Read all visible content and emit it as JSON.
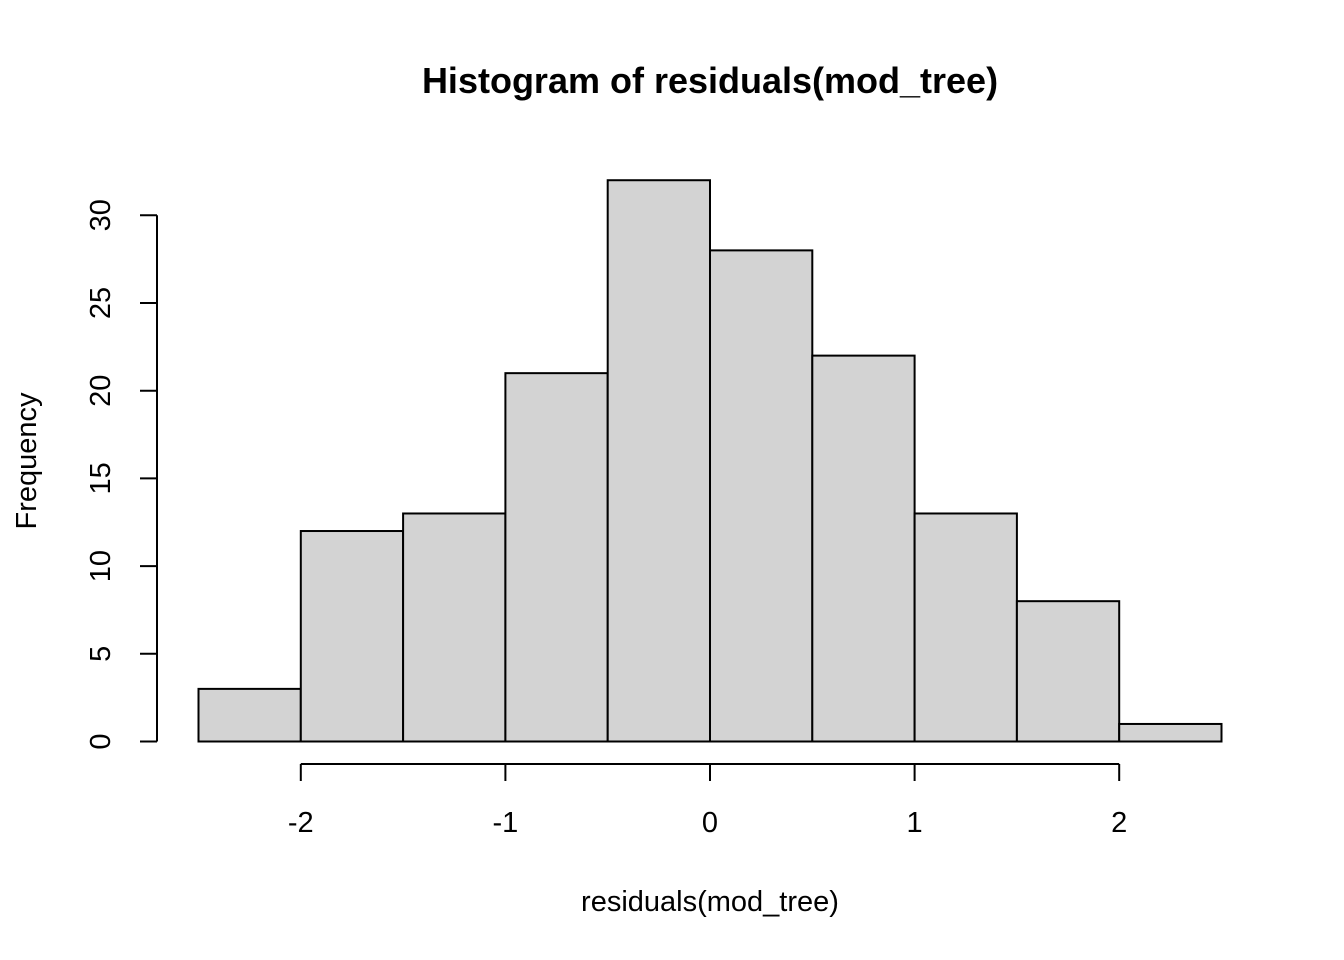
{
  "chart_data": {
    "type": "bar",
    "title": "Histogram of residuals(mod_tree)",
    "xlabel": "residuals(mod_tree)",
    "ylabel": "Frequency",
    "bins": [
      {
        "from": -2.5,
        "to": -2.0,
        "count": 3
      },
      {
        "from": -2.0,
        "to": -1.5,
        "count": 12
      },
      {
        "from": -1.5,
        "to": -1.0,
        "count": 13
      },
      {
        "from": -1.0,
        "to": -0.5,
        "count": 21
      },
      {
        "from": -0.5,
        "to": 0.0,
        "count": 32
      },
      {
        "from": 0.0,
        "to": 0.5,
        "count": 28
      },
      {
        "from": 0.5,
        "to": 1.0,
        "count": 22
      },
      {
        "from": 1.0,
        "to": 1.5,
        "count": 13
      },
      {
        "from": 1.5,
        "to": 2.0,
        "count": 8
      },
      {
        "from": 2.0,
        "to": 2.5,
        "count": 1
      }
    ],
    "xticks": [
      -2,
      -1,
      0,
      1,
      2
    ],
    "xtick_labels": [
      "-2",
      "-1",
      "0",
      "1",
      "2"
    ],
    "yticks": [
      0,
      5,
      10,
      15,
      20,
      25,
      30
    ],
    "ytick_labels": [
      "0",
      "5",
      "10",
      "15",
      "20",
      "25",
      "30"
    ],
    "bar_color": "#d3d3d3",
    "grid": false
  }
}
